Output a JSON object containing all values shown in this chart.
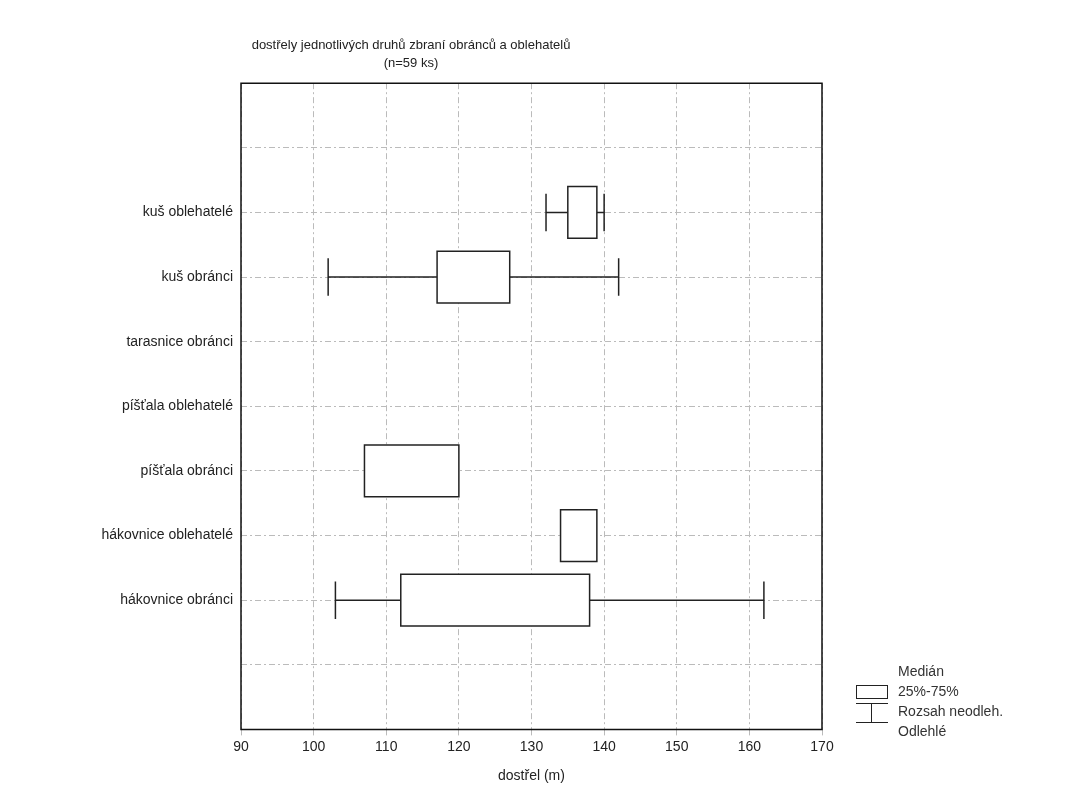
{
  "chart_data": {
    "type": "box",
    "title": "dostřely jednotlivých druhů zbraní obránců a oblehatelů",
    "subtitle": "(n=59 ks)",
    "xlabel": "dostřel (m)",
    "orientation": "horizontal",
    "categories": [
      null,
      "kuš oblehatelé",
      "kuš obránci",
      "tarasnice obránci",
      "píšťala oblehatelé",
      "píšťala obránci",
      "hákovnice oblehatelé",
      "hákovnice obránci",
      null
    ],
    "boxes": [
      null,
      {
        "low": 132,
        "q1": 135,
        "q3": 139,
        "high": 140
      },
      {
        "low": 102,
        "q1": 117,
        "q3": 127,
        "high": 142
      },
      null,
      null,
      {
        "q1": 107,
        "q3": 120
      },
      {
        "q1": 134,
        "q3": 139
      },
      {
        "low": 103,
        "q1": 112,
        "q3": 138,
        "high": 162
      },
      null
    ],
    "xlim": [
      90,
      170
    ],
    "xticks": [
      90,
      100,
      110,
      120,
      130,
      140,
      150,
      160,
      170
    ],
    "grid": true,
    "annotations": [
      "Medián",
      "25%-75%",
      "Rozsah neodleh.",
      "Odlehlé"
    ]
  }
}
